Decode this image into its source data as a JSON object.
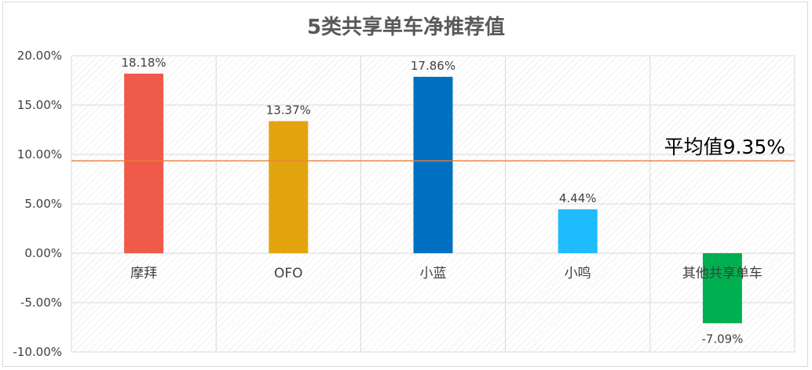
{
  "chart_data": {
    "type": "bar",
    "title": "5类共享单车净推荐值",
    "categories": [
      "摩拜",
      "OFO",
      "小蓝",
      "小鸣",
      "其他共享单车"
    ],
    "series": [
      {
        "values": [
          18.18,
          13.37,
          17.86,
          4.44,
          -7.09
        ],
        "value_labels": [
          "18.18%",
          "13.37%",
          "17.86%",
          "4.44%",
          "-7.09%"
        ],
        "colors": [
          "#f05a4a",
          "#e2a50f",
          "#0070c0",
          "#1ebcfc",
          "#00b050"
        ]
      }
    ],
    "ylim": [
      -10,
      20
    ],
    "yticks": [
      20,
      15,
      10,
      5,
      0,
      -5,
      -10
    ],
    "ytick_labels": [
      "20.00%",
      "15.00%",
      "10.00%",
      "5.00%",
      "0.00%",
      "-5.00%",
      "-10.00%"
    ],
    "average": {
      "value": 9.35,
      "label": "平均值9.35%",
      "color": "#ed7d31"
    },
    "grid": true,
    "legend": "none"
  }
}
